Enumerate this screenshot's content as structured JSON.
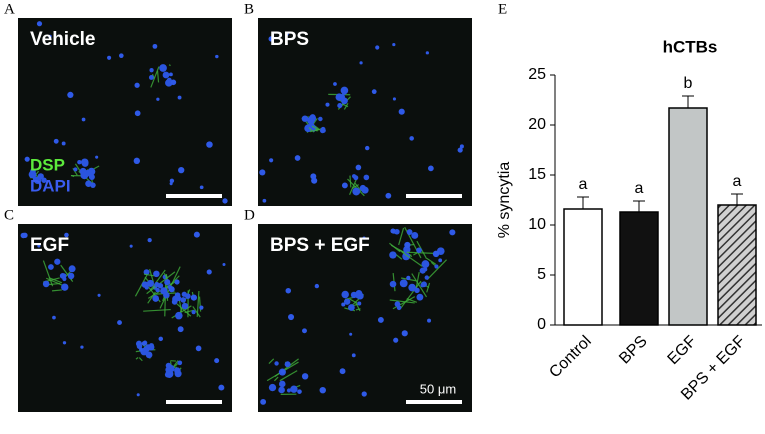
{
  "panels": [
    {
      "letter": "A",
      "label": "Vehicle"
    },
    {
      "letter": "B",
      "label": "BPS"
    },
    {
      "letter": "C",
      "label": "EGF"
    },
    {
      "letter": "D",
      "label": "BPS + EGF"
    }
  ],
  "stain_legend": [
    "DSP",
    "DAPI"
  ],
  "scale_bar": "50 μm",
  "chart_data": {
    "type": "bar",
    "panel_letter": "E",
    "title": "hCTBs",
    "y_label": "% syncytia",
    "categories": [
      "Control",
      "BPS",
      "EGF",
      "BPS + EGF"
    ],
    "values": [
      11.6,
      11.3,
      21.7,
      12.0
    ],
    "errors": [
      1.2,
      1.1,
      1.2,
      1.1
    ],
    "significance": [
      "a",
      "a",
      "b",
      "a"
    ],
    "colors": [
      "#ffffff",
      "#111111",
      "#c2c6c6",
      "#c8c8c8"
    ],
    "hatched": [
      false,
      false,
      false,
      true
    ],
    "ylim": [
      0,
      25
    ],
    "yticks": [
      0,
      5,
      10,
      15,
      20,
      25
    ]
  }
}
